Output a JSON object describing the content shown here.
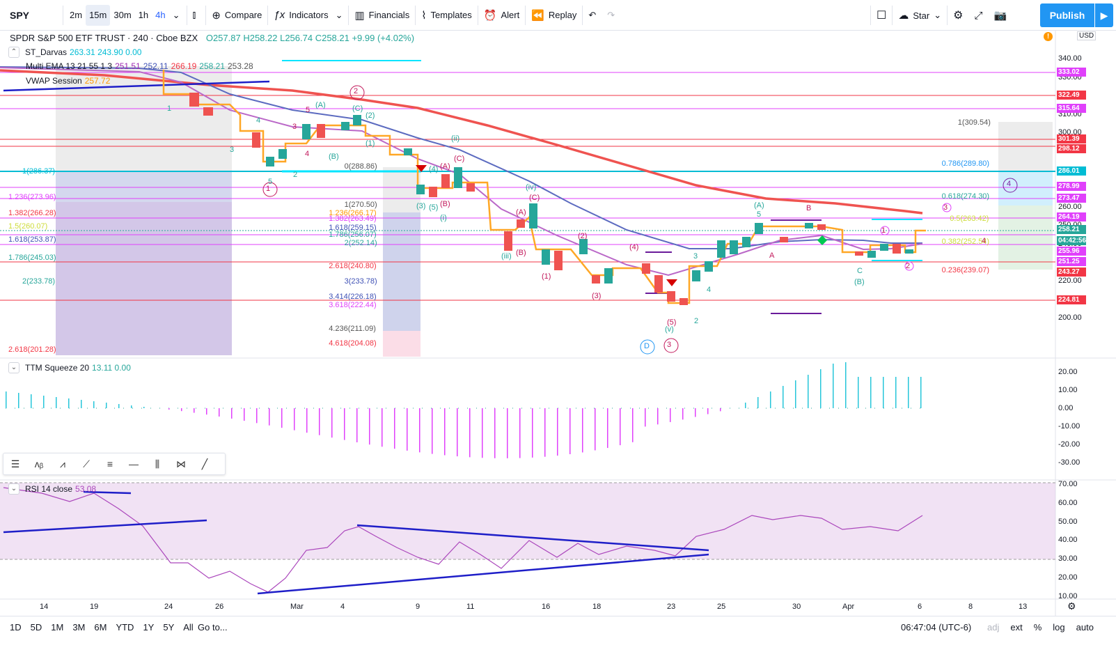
{
  "toolbar": {
    "symbol": "SPY",
    "intervals": [
      "2m",
      "15m",
      "30m",
      "1h",
      "4h"
    ],
    "compare": "Compare",
    "indicators": "Indicators",
    "financials": "Financials",
    "templates": "Templates",
    "alert": "Alert",
    "replay": "Replay",
    "star": "Star",
    "publish": "Publish"
  },
  "legend": {
    "title": "SPDR S&P 500 ETF TRUST · 240 · Cboe BZX",
    "ohlc": "O257.87 H258.22 L256.74 C258.21 +9.99 (+4.02%)",
    "darvas_label": "ST_Darvas",
    "darvas_vals": "263.31 243.90 0.00",
    "ema_label": "Multi EMA 13 21 55 1 3",
    "ema_vals": [
      "251.51",
      "252.11",
      "266.19",
      "258.21",
      "253.28"
    ],
    "vwap_label": "VWAP Session",
    "vwap_val": "257.72",
    "ttm_label": "TTM Squeeze 20",
    "ttm_vals": "13.11 0.00",
    "rsi_label": "RSI 14 close",
    "rsi_val": "53.08",
    "usd": "USD"
  },
  "price_axis": {
    "ticks": [
      "340.00",
      "330.00",
      "320.00",
      "310.00",
      "300.00",
      "290.00",
      "280.00",
      "270.00",
      "260.00",
      "250.00",
      "240.00",
      "230.00",
      "220.00",
      "210.00",
      "200.00"
    ],
    "badges": [
      {
        "v": "333.02",
        "c": "#e040fb"
      },
      {
        "v": "322.49",
        "c": "#f23645"
      },
      {
        "v": "315.64",
        "c": "#e040fb"
      },
      {
        "v": "301.39",
        "c": "#f23645"
      },
      {
        "v": "298.12",
        "c": "#f23645"
      },
      {
        "v": "286.01",
        "c": "#00bcd4"
      },
      {
        "v": "278.99",
        "c": "#e040fb"
      },
      {
        "v": "273.47",
        "c": "#e040fb"
      },
      {
        "v": "264.19",
        "c": "#e040fb"
      },
      {
        "v": "258.21",
        "c": "#26a69a"
      },
      {
        "v": "04:42:56",
        "c": "#26a69a"
      },
      {
        "v": "255.96",
        "c": "#e040fb"
      },
      {
        "v": "251.25",
        "c": "#e040fb"
      },
      {
        "v": "243.27",
        "c": "#f23645"
      },
      {
        "v": "224.81",
        "c": "#f23645"
      }
    ]
  },
  "ttm_axis": [
    "20.00",
    "10.00",
    "0.00",
    "-10.00",
    "-20.00",
    "-30.00"
  ],
  "rsi_axis": [
    "70.00",
    "60.00",
    "50.00",
    "40.00",
    "30.00",
    "20.00",
    "10.00"
  ],
  "time_axis": [
    "14",
    "19",
    "24",
    "26",
    "Mar",
    "4",
    "9",
    "11",
    "16",
    "18",
    "23",
    "25",
    "30",
    "Apr",
    "6",
    "8",
    "13"
  ],
  "fib_left": [
    "1(286.37)",
    "1.236(273.96)",
    "1.382(266.28)",
    "1.5(260.07)",
    "1.618(253.87)",
    "1.786(245.03)",
    "2(233.78)",
    "2.618(201.28)"
  ],
  "fib_mid": [
    "0(288.86)",
    "1(270.50)",
    "1.236(266.17)",
    "1.382(263.49)",
    "1.618(259.15)",
    "1.786(256.07)",
    "2(252.14)",
    "2.618(240.80)",
    "3(233.78)",
    "3.414(226.18)",
    "3.618(222.44)",
    "4.236(211.09)",
    "4.618(204.08)"
  ],
  "fib_right": [
    "1(309.54)",
    "0.786(289.80)",
    "0.618(274.30)",
    "0.5(263.42)",
    "0.382(252.54)",
    "0.236(239.07)"
  ],
  "waves": [
    "1",
    "2",
    "3",
    "4",
    "5",
    "(A)",
    "(B)",
    "(C)",
    "(1)",
    "(2)",
    "(3)",
    "(4)",
    "(5)",
    "(i)",
    "(ii)",
    "(iii)",
    "(iv)",
    "(v)",
    "A",
    "B",
    "C",
    "D"
  ],
  "bottom": {
    "ranges": [
      "1D",
      "5D",
      "1M",
      "3M",
      "6M",
      "YTD",
      "1Y",
      "5Y",
      "All"
    ],
    "goto": "Go to...",
    "clock": "06:47:04 (UTC-6)",
    "opts": [
      "adj",
      "ext",
      "%",
      "log",
      "auto"
    ]
  }
}
